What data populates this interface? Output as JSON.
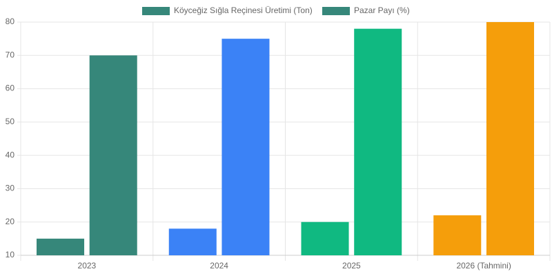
{
  "chart_data": {
    "type": "bar",
    "categories": [
      "2023",
      "2024",
      "2025",
      "2026 (Tahmini)"
    ],
    "series": [
      {
        "name": "Köyceğiz Sığla Reçinesi Üretimi (Ton)",
        "color": "#36877a",
        "colors": [
          "#36877a",
          "#3b82f6",
          "#10b981",
          "#f59e0b"
        ],
        "values": [
          15,
          18,
          20,
          22
        ]
      },
      {
        "name": "Pazar Payı (%)",
        "color": "#36877a",
        "colors": [
          "#36877a",
          "#3b82f6",
          "#10b981",
          "#f59e0b"
        ],
        "values": [
          70,
          75,
          78,
          80
        ]
      }
    ],
    "ylim": [
      10,
      80
    ],
    "yticks": [
      10,
      20,
      30,
      40,
      50,
      60,
      70,
      80
    ],
    "grid": true,
    "legend": "top"
  }
}
